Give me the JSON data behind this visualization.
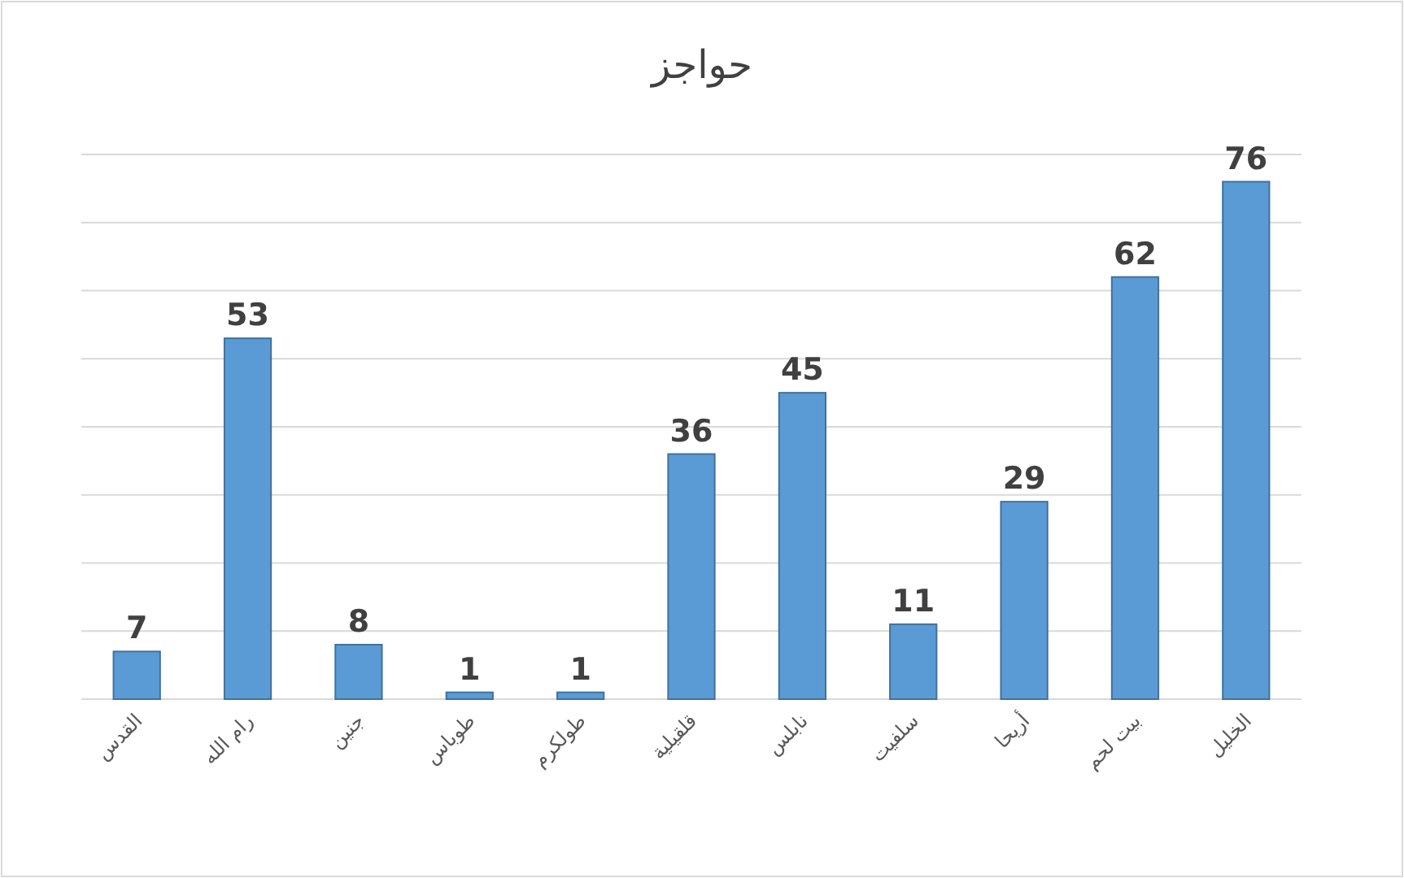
{
  "chart_data": {
    "type": "bar",
    "title": "حواجز",
    "categories": [
      "القدس",
      "رام الله",
      "جنين",
      "طوباس",
      "طولكرم",
      "قلقيلية",
      "نابلس",
      "سلفيت",
      "أريحا",
      "بيت لحم",
      "الخليل"
    ],
    "values": [
      7,
      53,
      8,
      1,
      1,
      36,
      45,
      11,
      29,
      62,
      76
    ],
    "color": "#5b9bd5",
    "ylim": [
      0,
      80
    ],
    "yticks": [
      {
        "value": 0,
        "label": null
      },
      {
        "value": 10,
        "label": null
      },
      {
        "value": 20,
        "label": null
      },
      {
        "value": 30,
        "label": null
      },
      {
        "value": 40,
        "label": null
      },
      {
        "value": 50,
        "label": null
      },
      {
        "value": 60,
        "label": null
      },
      {
        "value": 70,
        "label": null
      },
      {
        "value": 80,
        "label": null
      }
    ],
    "grid": "y",
    "data_labels": true
  }
}
